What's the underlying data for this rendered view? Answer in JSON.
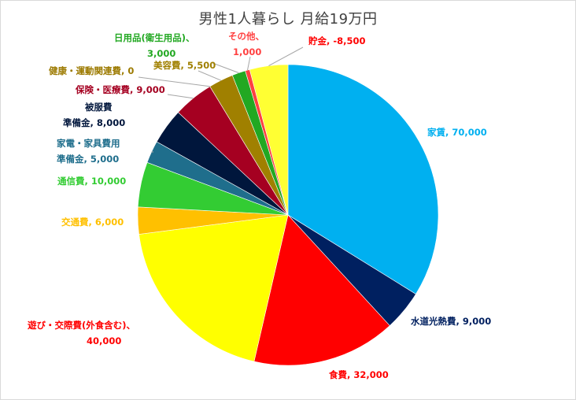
{
  "chart_data": {
    "type": "pie",
    "title": "男性1人暮らし  月給19万円",
    "slices": [
      {
        "label": "家賃",
        "value": 70000,
        "display_value": "70,000",
        "color": "#00B0F0",
        "label_color": "#00B0F0"
      },
      {
        "label": "水道光熱費",
        "value": 9000,
        "display_value": "9,000",
        "color": "#002060",
        "label_color": "#002060"
      },
      {
        "label": "食費",
        "value": 32000,
        "display_value": "32,000",
        "color": "#FF0000",
        "label_color": "#FF0000"
      },
      {
        "label": "遊び・交際費(外食含む)",
        "value": 40000,
        "display_value": "40,000",
        "color": "#FFFF00",
        "label_color": "#FF0000"
      },
      {
        "label": "交通費",
        "value": 6000,
        "display_value": "6,000",
        "color": "#FFC000",
        "label_color": "#FFC000"
      },
      {
        "label": "通信費",
        "value": 10000,
        "display_value": "10,000",
        "color": "#33CC33",
        "label_color": "#33CC33"
      },
      {
        "label": "家電・家具費用準備金",
        "value": 5000,
        "display_value": "5,000",
        "color": "#1F6E8C",
        "label_color": "#1F6E8C"
      },
      {
        "label": "被服費準備金",
        "value": 8000,
        "display_value": "8,000",
        "color": "#00163C",
        "label_color": "#00163C"
      },
      {
        "label": "保険・医療費",
        "value": 9000,
        "display_value": "9,000",
        "color": "#A50021",
        "label_color": "#A50021"
      },
      {
        "label": "健康・運動関連費",
        "value": 0,
        "display_value": "0",
        "color": "#9C7A00",
        "label_color": "#9C7A00"
      },
      {
        "label": "美容費",
        "value": 5500,
        "display_value": "5,500",
        "color": "#A08000",
        "label_color": "#A08000"
      },
      {
        "label": "日用品(衛生用品)",
        "value": 3000,
        "display_value": "3,000",
        "color": "#22A822",
        "label_color": "#22A822"
      },
      {
        "label": "その他",
        "value": 1000,
        "display_value": "1,000",
        "color": "#FF4040",
        "label_color": "#FF4040"
      },
      {
        "label": "貯金",
        "value": 8500,
        "display_value": "-8,500",
        "color": "#FFFF33",
        "label_color": "#FF0000"
      }
    ],
    "legend": "none",
    "data_labels": "category name and value"
  }
}
